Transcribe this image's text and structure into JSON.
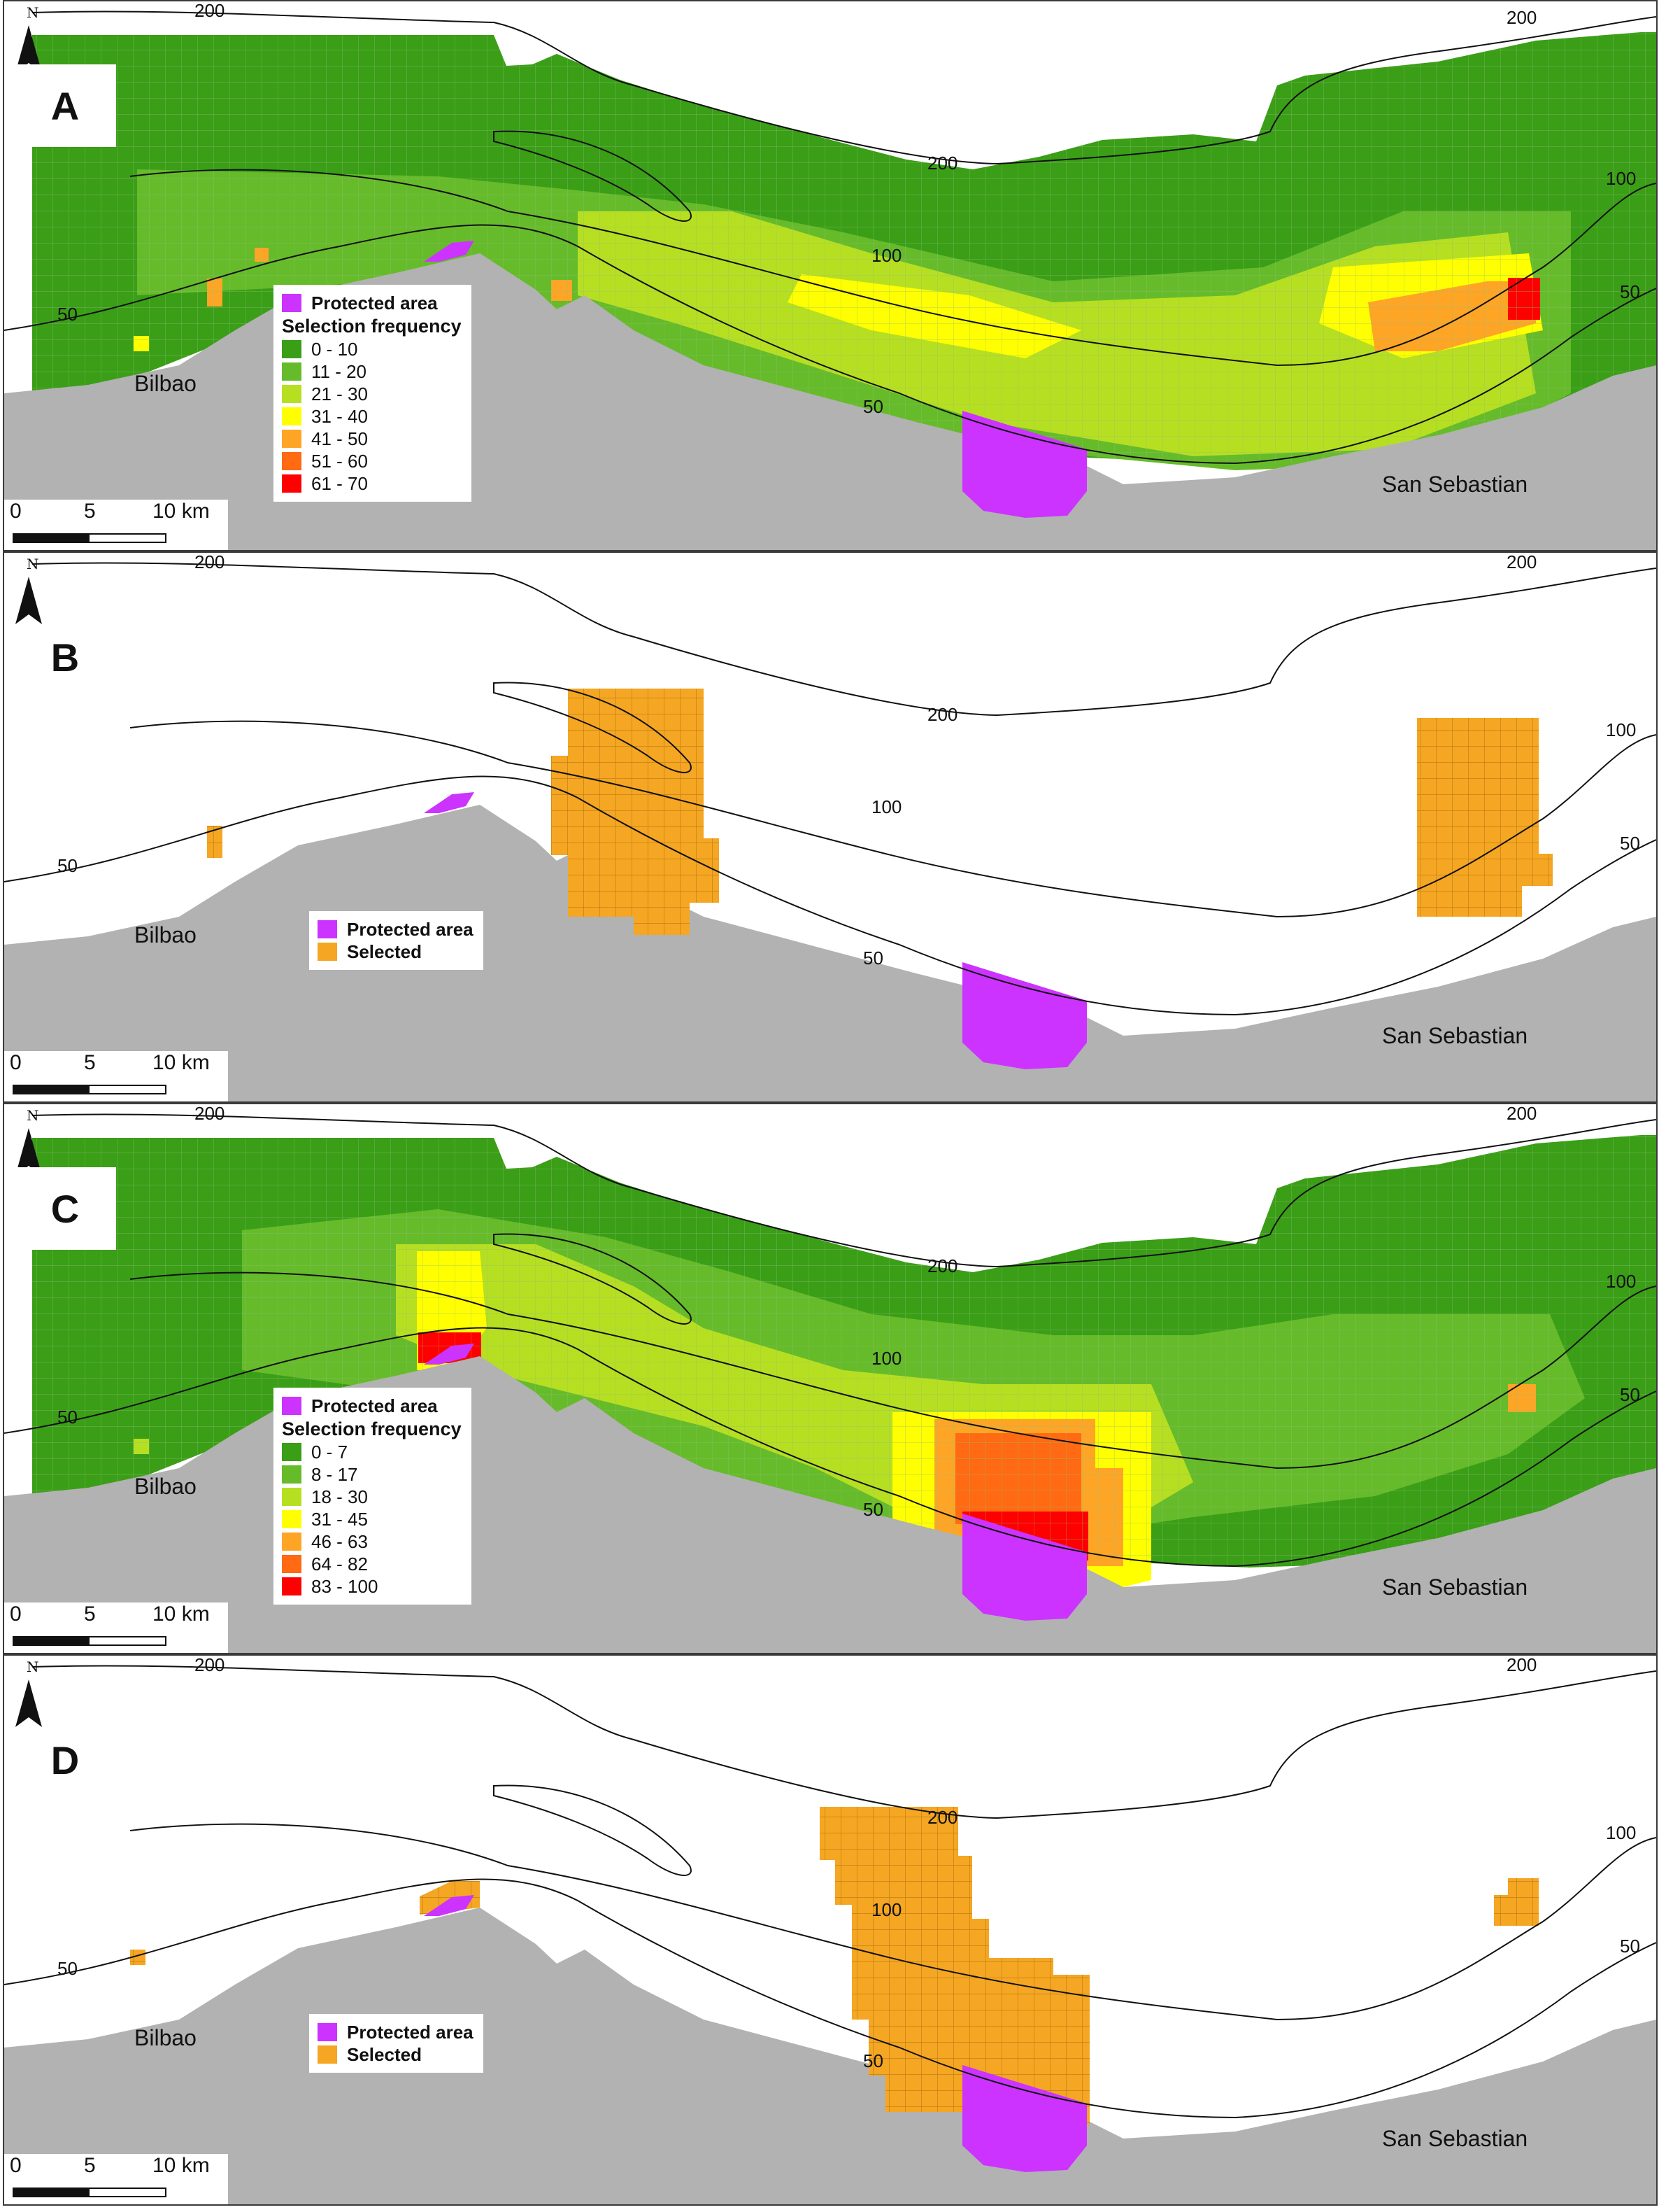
{
  "north_letter": "N",
  "legend_protected": "Protected area",
  "legend_selected": "Selected",
  "legend_frequency_title": "Selection frequency",
  "contours": {
    "c50": "50",
    "c100": "100",
    "c200": "200"
  },
  "places": {
    "bilbao": "Bilbao",
    "san_sebastian": "San Sebastian"
  },
  "scale": {
    "zero": "0",
    "five": "5",
    "ten": "10 km"
  },
  "colors": {
    "land": "#b2b2b2",
    "protected": "#cc33ff",
    "selected": "#f5a623",
    "freq": [
      "#3a9e17",
      "#66bb2a",
      "#b6df22",
      "#ffff00",
      "#ffa526",
      "#ff6a12",
      "#ff0000"
    ]
  },
  "panels": [
    {
      "letter": "A",
      "type": "frequency",
      "classes": [
        "0 - 10",
        "11 - 20",
        "21 - 30",
        "31 - 40",
        "41 - 50",
        "51 - 60",
        "61 - 70"
      ]
    },
    {
      "letter": "B",
      "type": "selection"
    },
    {
      "letter": "C",
      "type": "frequency",
      "classes": [
        "0 - 7",
        "8 - 17",
        "18 - 30",
        "31 - 45",
        "46 - 63",
        "64 - 82",
        "83 - 100"
      ]
    },
    {
      "letter": "D",
      "type": "selection"
    }
  ]
}
